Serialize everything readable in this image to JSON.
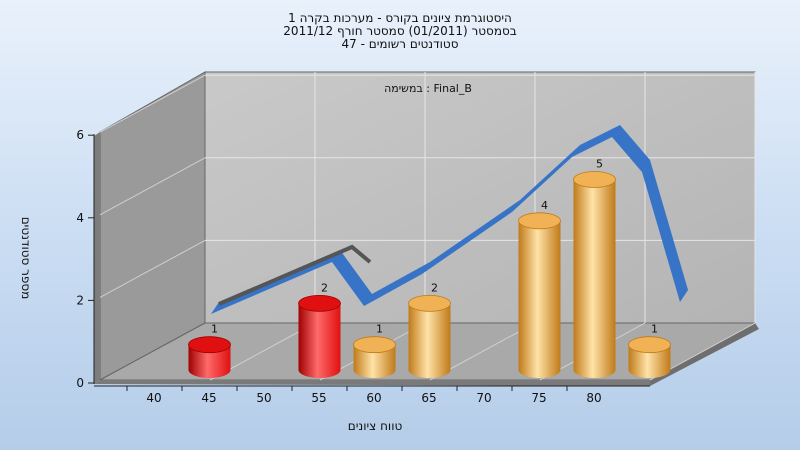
{
  "chart_data": {
    "type": "bar",
    "title_lines": [
      "היסטוגרמת ציונים בקורס - מערכות בקרה 1",
      "בסמסטר  (01/2011)  סמסטר חורף 2011/12",
      "סטודנטים רשומים - 47"
    ],
    "inner_label": "במשימה : Final_B",
    "xlabel": "טווח ציונים",
    "ylabel": "מספר סטודנטים",
    "x_ticks": [
      "40",
      "45",
      "50",
      "55",
      "60",
      "65",
      "70",
      "75",
      "80"
    ],
    "y_ticks": [
      "0",
      "2",
      "4",
      "6"
    ],
    "ylim": [
      0,
      6
    ],
    "bars": [
      {
        "bin": "40-45",
        "value": 1,
        "color": "red"
      },
      {
        "bin": "50-55",
        "value": 2,
        "color": "red"
      },
      {
        "bin": "55-60",
        "value": 1,
        "color": "orange"
      },
      {
        "bin": "60-65",
        "value": 2,
        "color": "orange"
      },
      {
        "bin": "70-75",
        "value": 4,
        "color": "orange"
      },
      {
        "bin": "75-80",
        "value": 5,
        "color": "orange"
      },
      {
        "bin": "80-85",
        "value": 1,
        "color": "orange"
      }
    ],
    "colors": {
      "red_light": "#ff6a6a",
      "red_mid": "#e01010",
      "red_dark": "#a00000",
      "orange_light": "#ffe3a8",
      "orange_mid": "#f0b255",
      "orange_dark": "#c07a18",
      "curve": "#2f6fc6",
      "curve_shadow": "#555555"
    },
    "grid": true
  }
}
